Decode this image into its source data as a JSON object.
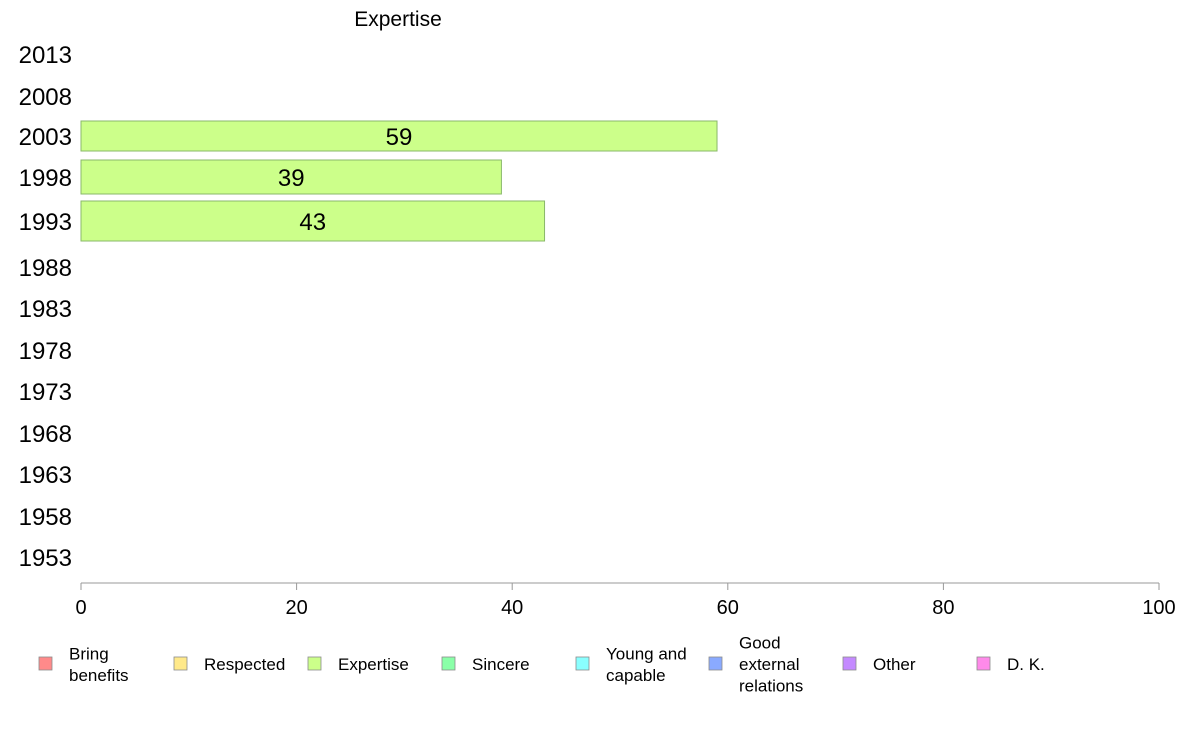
{
  "chart_data": {
    "type": "bar",
    "orientation": "horizontal",
    "title": "Expertise",
    "categories": [
      "2013",
      "2008",
      "2003",
      "1998",
      "1993",
      "1988",
      "1983",
      "1978",
      "1973",
      "1968",
      "1963",
      "1958",
      "1953"
    ],
    "series": [
      {
        "name": "Expertise",
        "values": [
          null,
          null,
          59,
          39,
          43,
          null,
          null,
          null,
          null,
          null,
          null,
          null,
          null
        ]
      }
    ],
    "data_labels": [
      "",
      "",
      "59",
      "39",
      "43",
      "",
      "",
      "",
      "",
      "",
      "",
      "",
      ""
    ],
    "xlim": [
      0,
      100
    ],
    "xticks": [
      0,
      20,
      40,
      60,
      80,
      100
    ],
    "xtick_labels": [
      "0",
      "20",
      "40",
      "60",
      "80",
      "100"
    ],
    "grid": false,
    "legend_position": "bottom",
    "legend": [
      {
        "lines": [
          "Bring",
          "benefits"
        ],
        "color": "#ff8a8a"
      },
      {
        "lines": [
          "Respected"
        ],
        "color": "#ffe98a"
      },
      {
        "lines": [
          "Expertise"
        ],
        "color": "#ccff8a"
      },
      {
        "lines": [
          "Sincere"
        ],
        "color": "#8affa8"
      },
      {
        "lines": [
          "Young and",
          "capable"
        ],
        "color": "#8affff"
      },
      {
        "lines": [
          "Good",
          "external",
          "relations"
        ],
        "color": "#8aaaff"
      },
      {
        "lines": [
          "Other"
        ],
        "color": "#c48aff"
      },
      {
        "lines": [
          "D. K."
        ],
        "color": "#ff8aea"
      }
    ],
    "bar_color": "#ccff8a",
    "bar_edge_color": "#8ab86a"
  }
}
